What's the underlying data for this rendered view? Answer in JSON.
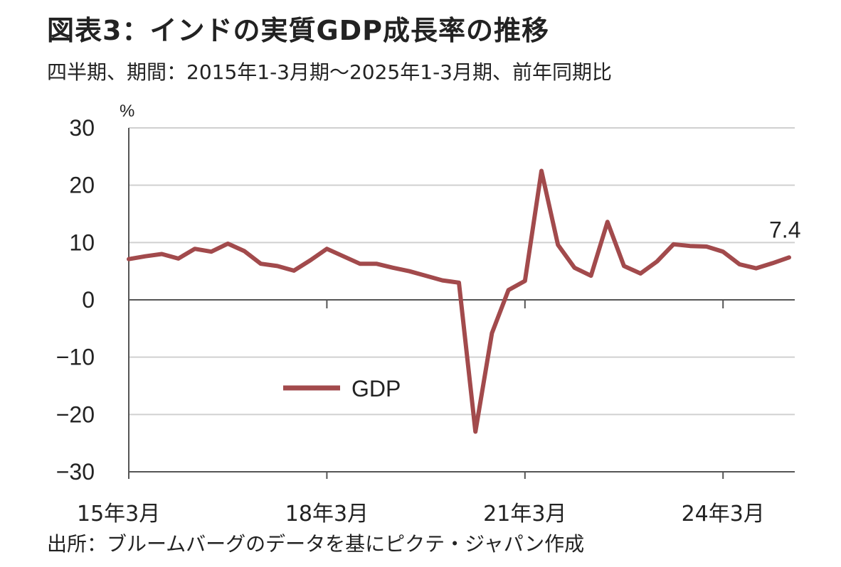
{
  "header": {
    "title": "図表3：インドの実質GDP成長率の推移",
    "subtitle": "四半期、期間：2015年1-3月期～2025年1-3月期、前年同期比"
  },
  "footer": {
    "source": "出所：ブルームバーグのデータを基にピクテ・ジャパン作成"
  },
  "colors": {
    "series": "#a24a4c",
    "grid": "#d0d0d0",
    "axis": "#555555"
  },
  "chart_data": {
    "type": "line",
    "title": "図表3：インドの実質GDP成長率の推移",
    "subtitle": "四半期、期間：2015年1-3月期～2025年1-3月期、前年同期比",
    "ylabel": "%",
    "ylim": [
      -30,
      30
    ],
    "yticks": [
      30,
      20,
      10,
      0,
      -10,
      -20,
      -30
    ],
    "grid": true,
    "legend": {
      "placement": "center-left",
      "entries": [
        "GDP"
      ]
    },
    "x_tick_labels": [
      {
        "label": "15年3月",
        "index": 0
      },
      {
        "label": "18年3月",
        "index": 12
      },
      {
        "label": "21年3月",
        "index": 24
      },
      {
        "label": "24年3月",
        "index": 36
      }
    ],
    "series": [
      {
        "name": "GDP",
        "values": [
          7.1,
          7.6,
          8.0,
          7.2,
          8.9,
          8.4,
          9.8,
          8.5,
          6.3,
          5.9,
          5.1,
          6.9,
          8.9,
          7.6,
          6.3,
          6.3,
          5.6,
          5.0,
          4.2,
          3.4,
          3.0,
          -23.0,
          -5.8,
          1.7,
          3.3,
          22.5,
          9.6,
          5.6,
          4.2,
          13.6,
          5.9,
          4.6,
          6.7,
          9.7,
          9.4,
          9.3,
          8.4,
          6.2,
          5.5,
          6.4,
          7.4
        ]
      }
    ],
    "annotations": [
      {
        "text": "7.4",
        "series": "GDP",
        "index": 40
      }
    ]
  }
}
